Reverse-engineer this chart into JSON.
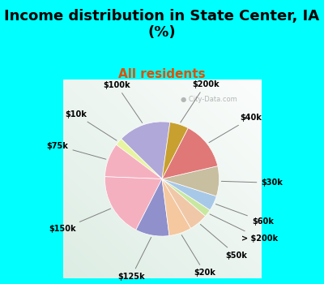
{
  "title": "Income distribution in State Center, IA\n(%)",
  "subtitle": "All residents",
  "title_fontsize": 13,
  "subtitle_fontsize": 11,
  "background_color": "#00FFFF",
  "labels": [
    "$100k",
    "$10k",
    "$75k",
    "$150k",
    "$125k",
    "$20k",
    "$50k",
    "> $200k",
    "$60k",
    "$30k",
    "$40k",
    "$200k"
  ],
  "sizes": [
    14,
    2,
    9,
    17,
    9,
    6,
    5,
    2,
    4,
    8,
    13,
    5
  ],
  "colors": [
    "#b0a8d8",
    "#e8f5a0",
    "#f5b0c0",
    "#f5b0c0",
    "#9090cc",
    "#f5c8a0",
    "#f0c8a8",
    "#c8e8a0",
    "#a8c8e8",
    "#c8bea0",
    "#e07878",
    "#c8a030"
  ],
  "startangle": 82,
  "watermark": "City-Data.com"
}
